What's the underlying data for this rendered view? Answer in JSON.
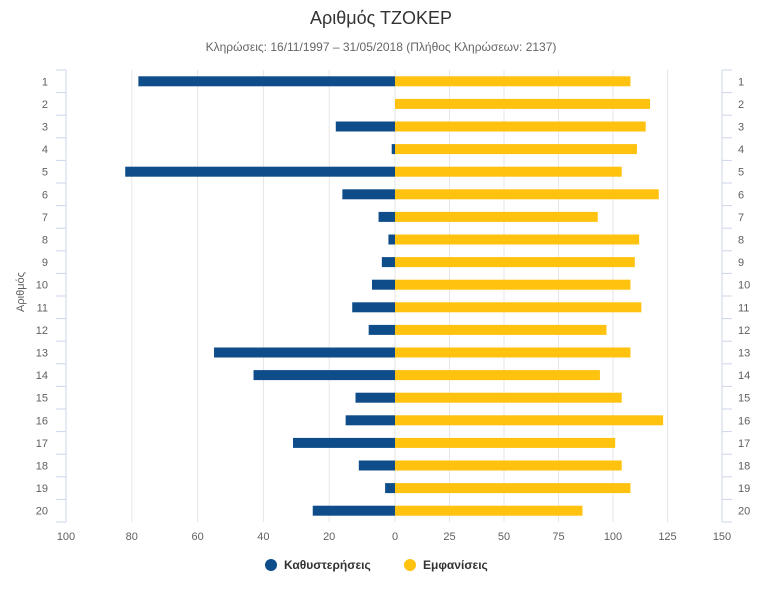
{
  "chart_data": {
    "type": "bar",
    "orientation": "horizontal",
    "title": "Αριθμός ΤΖΟΚΕΡ",
    "subtitle": "Κληρώσεις: 16/11/1997 – 31/05/2018 (Πλήθος Κληρώσεων: 2137)",
    "ylabel": "Αριθμός",
    "xlabel": "",
    "categories": [
      "1",
      "2",
      "3",
      "4",
      "5",
      "6",
      "7",
      "8",
      "9",
      "10",
      "11",
      "12",
      "13",
      "14",
      "15",
      "16",
      "17",
      "18",
      "19",
      "20"
    ],
    "series": [
      {
        "name": "Καθυστερήσεις",
        "color": "#0f4c8a",
        "values": [
          78,
          0,
          18,
          1,
          82,
          16,
          5,
          2,
          4,
          7,
          13,
          8,
          55,
          43,
          12,
          15,
          31,
          11,
          3,
          25
        ]
      },
      {
        "name": "Εμφανίσεις",
        "color": "#ffc20e",
        "values": [
          108,
          117,
          115,
          111,
          104,
          121,
          93,
          112,
          110,
          108,
          113,
          97,
          108,
          94,
          104,
          123,
          101,
          104,
          108,
          86
        ]
      }
    ],
    "left_axis": {
      "ticks": [
        100,
        80,
        60,
        40,
        20,
        0
      ],
      "range": [
        0,
        100
      ],
      "reversed": true
    },
    "right_axis": {
      "ticks": [
        0,
        25,
        50,
        75,
        100,
        125,
        150
      ],
      "range": [
        0,
        150
      ]
    },
    "grid": true,
    "legend_position": "bottom-center"
  }
}
